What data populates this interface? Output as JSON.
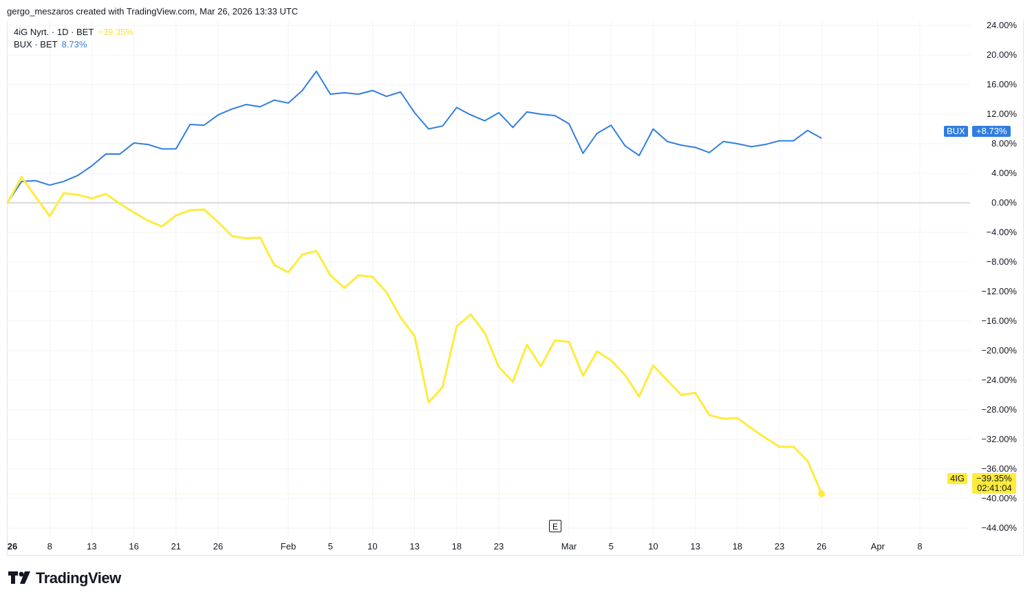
{
  "attribution": "gergo_meszaros created with TradingView.com, Mar 26, 2026 13:33 UTC",
  "legend": [
    {
      "label": "4iG Nyrt. · 1D · BET",
      "value": "−39.35%",
      "color": "#ffeb3b"
    },
    {
      "label": "BUX · BET",
      "value": "8.73%",
      "color": "#2962ff"
    }
  ],
  "badges": {
    "bux": {
      "symbol": "BUX",
      "value": "+8.73%",
      "color": "#2f7de1"
    },
    "fourig": {
      "symbol": "4IG",
      "value": "−39.35%",
      "countdown": "02:41:04",
      "color": "#ffeb3b"
    }
  },
  "earnings_marker": "E",
  "brand": "TradingView",
  "chart_data": {
    "type": "line",
    "yunit": "%",
    "ylim": [
      -46,
      24
    ],
    "yticks": [
      "24.00%",
      "20.00%",
      "16.00%",
      "12.00%",
      "8.00%",
      "4.00%",
      "0.00%",
      "−4.00%",
      "−8.00%",
      "−12.00%",
      "−16.00%",
      "−20.00%",
      "−24.00%",
      "−28.00%",
      "−32.00%",
      "−36.00%",
      "−40.00%",
      "−44.00%"
    ],
    "ytick_values": [
      24,
      20,
      16,
      12,
      8,
      4,
      0,
      -4,
      -8,
      -12,
      -16,
      -20,
      -24,
      -28,
      -32,
      -36,
      -40,
      -44
    ],
    "xticks": [
      {
        "label": "26",
        "date": "2026-01-02",
        "bold": true
      },
      {
        "label": "8",
        "date": "2026-01-08"
      },
      {
        "label": "13",
        "date": "2026-01-13"
      },
      {
        "label": "16",
        "date": "2026-01-16"
      },
      {
        "label": "21",
        "date": "2026-01-21"
      },
      {
        "label": "26",
        "date": "2026-01-26"
      },
      {
        "label": "Feb",
        "date": "2026-02-02"
      },
      {
        "label": "5",
        "date": "2026-02-05"
      },
      {
        "label": "10",
        "date": "2026-02-10"
      },
      {
        "label": "13",
        "date": "2026-02-13"
      },
      {
        "label": "18",
        "date": "2026-02-18"
      },
      {
        "label": "23",
        "date": "2026-02-23"
      },
      {
        "label": "Mar",
        "date": "2026-03-02"
      },
      {
        "label": "5",
        "date": "2026-03-05"
      },
      {
        "label": "10",
        "date": "2026-03-10"
      },
      {
        "label": "13",
        "date": "2026-03-13"
      },
      {
        "label": "18",
        "date": "2026-03-18"
      },
      {
        "label": "23",
        "date": "2026-03-23"
      },
      {
        "label": "26",
        "date": "2026-03-26"
      },
      {
        "label": "Apr",
        "date": "2026-04-01"
      },
      {
        "label": "8",
        "date": "2026-04-08"
      }
    ],
    "grid": true,
    "legend_position": "top-left",
    "series": [
      {
        "name": "BUX",
        "color": "#2f7de1",
        "values": [
          0,
          2.9,
          3.0,
          2.4,
          2.9,
          3.7,
          5.0,
          6.6,
          6.6,
          8.1,
          7.9,
          7.3,
          7.3,
          10.6,
          10.5,
          11.9,
          12.7,
          13.3,
          13.0,
          13.9,
          13.5,
          15.2,
          17.8,
          14.7,
          14.9,
          14.7,
          15.2,
          14.4,
          15.0,
          12.2,
          10.0,
          10.4,
          12.9,
          11.9,
          11.1,
          12.2,
          10.2,
          12.3,
          12.0,
          11.8,
          10.7,
          6.7,
          9.4,
          10.5,
          7.7,
          6.4,
          10.0,
          8.3,
          7.8,
          7.5,
          6.8,
          8.3,
          8.0,
          7.6,
          7.9,
          8.4,
          8.4,
          9.8,
          8.73
        ]
      },
      {
        "name": "4IG",
        "color": "#ffeb3b",
        "values": [
          0,
          3.5,
          0.8,
          -1.8,
          1.3,
          1.1,
          0.6,
          1.2,
          -0.1,
          -1.3,
          -2.4,
          -3.2,
          -1.7,
          -1.0,
          -0.9,
          -2.6,
          -4.5,
          -4.8,
          -4.7,
          -8.4,
          -9.4,
          -7.0,
          -6.5,
          -9.8,
          -11.5,
          -9.8,
          -10.0,
          -12.1,
          -15.5,
          -18.0,
          -27.0,
          -24.9,
          -16.7,
          -15.1,
          -17.6,
          -22.2,
          -24.2,
          -19.2,
          -22.1,
          -18.6,
          -18.8,
          -23.4,
          -20.1,
          -21.3,
          -23.3,
          -26.2,
          -22.0,
          -24.0,
          -26.0,
          -25.7,
          -28.7,
          -29.2,
          -29.1,
          -30.5,
          -31.8,
          -33.0,
          -33.0,
          -34.9,
          -39.35
        ]
      }
    ],
    "start_date": "2026-01-05",
    "end_date": "2026-03-26"
  }
}
